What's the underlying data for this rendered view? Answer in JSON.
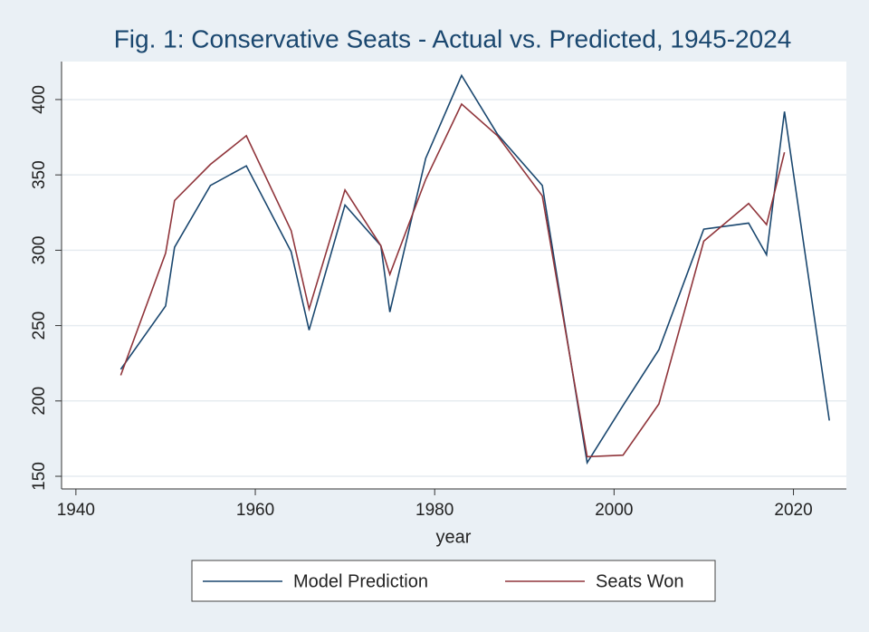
{
  "chart_data": {
    "type": "line",
    "title": "Fig. 1: Conservative Seats - Actual vs. Predicted, 1945-2024",
    "x_label": "year",
    "x": [
      1945,
      1950,
      1951,
      1955,
      1959,
      1964,
      1966,
      1970,
      1974,
      1975,
      1979,
      1983,
      1987,
      1992,
      1997,
      2001,
      2005,
      2010,
      2015,
      2017,
      2019,
      2024
    ],
    "series": [
      {
        "name": "Model Prediction",
        "color": "#1a476f",
        "values": [
          221,
          263,
          302,
          343,
          356,
          299,
          247,
          330,
          303,
          259,
          361,
          416,
          377,
          343,
          159,
          197,
          234,
          314,
          318,
          297,
          392,
          187
        ]
      },
      {
        "name": "Seats Won",
        "color": "#90353b",
        "values": [
          217,
          298,
          333,
          357,
          376,
          313,
          261,
          340,
          303,
          284,
          347,
          397,
          376,
          336,
          163,
          164,
          198,
          306,
          331,
          317,
          365,
          null
        ]
      }
    ],
    "xlim": [
      1938.4,
      2025.9
    ],
    "xticks": [
      1940,
      1960,
      1980,
      2000,
      2020
    ],
    "ylim": [
      141.6,
      425.2
    ],
    "yticks": [
      150,
      200,
      250,
      300,
      350,
      400
    ],
    "grid": true,
    "legend": "bottom"
  }
}
